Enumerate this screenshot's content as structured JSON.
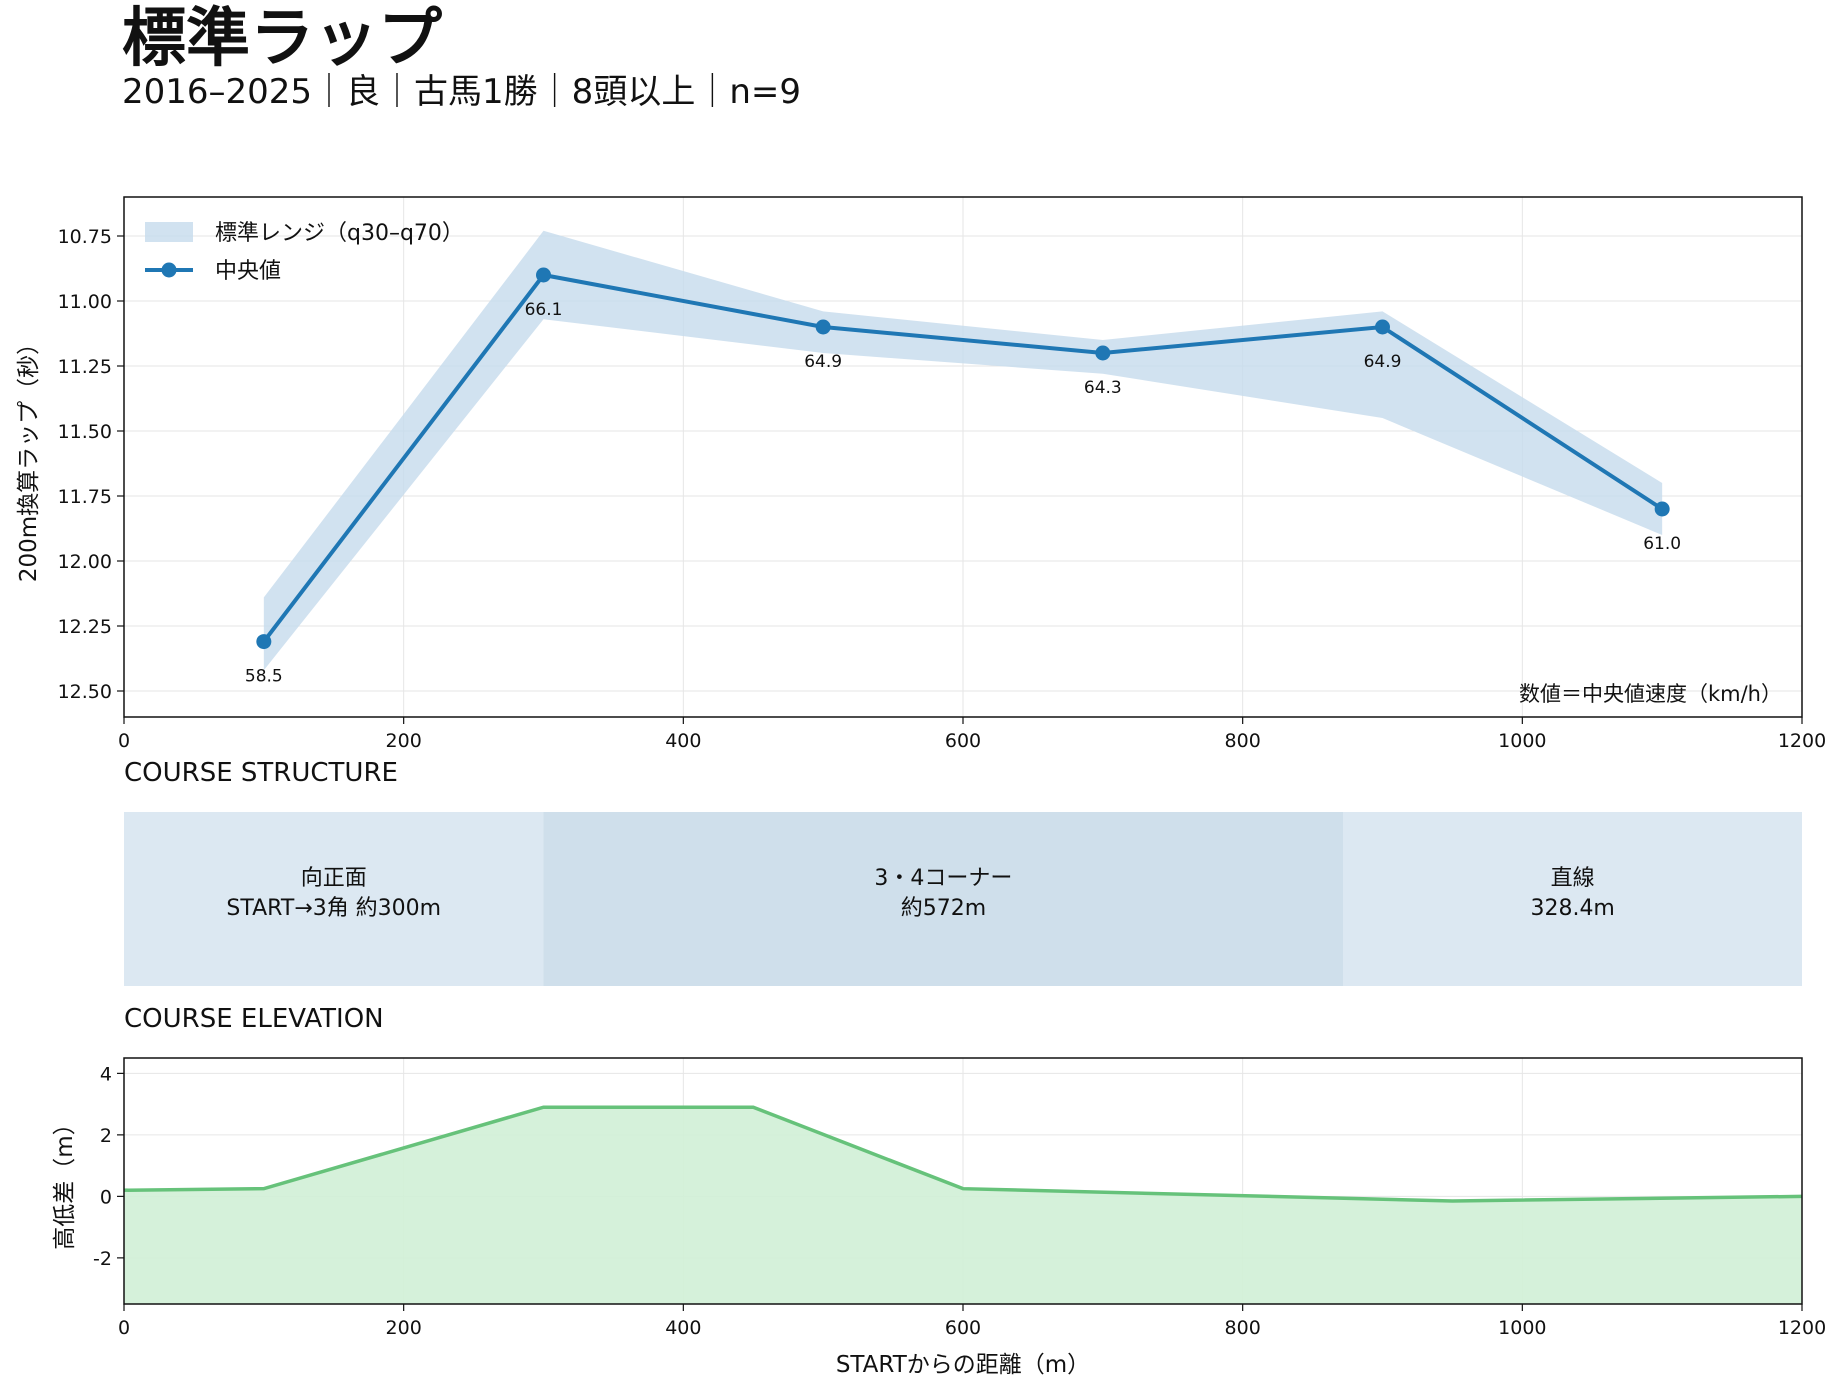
{
  "header": {
    "title": "標準ラップ",
    "subtitle": "2016–2025｜良｜古馬1勝｜8頭以上｜n=9"
  },
  "sections": {
    "structure": "COURSE STRUCTURE",
    "elevation": "COURSE ELEVATION"
  },
  "chart_data": [
    {
      "type": "line",
      "x": [
        100,
        300,
        500,
        700,
        900,
        1100
      ],
      "series": [
        {
          "name": "中央値",
          "values": [
            12.31,
            10.9,
            11.1,
            11.2,
            11.1,
            11.8
          ],
          "color": "#1f77b4",
          "labels": [
            "58.5",
            "66.1",
            "64.9",
            "64.3",
            "64.9",
            "61.0"
          ]
        }
      ],
      "band": {
        "name": "標準レンジ（q30–q70）",
        "x": [
          100,
          300,
          500,
          700,
          900,
          1100
        ],
        "low": [
          12.14,
          10.73,
          11.04,
          11.15,
          11.04,
          11.7
        ],
        "high": [
          12.42,
          11.07,
          11.2,
          11.28,
          11.45,
          11.9
        ],
        "color": "#c6dbec"
      },
      "ylabel": "200m換算ラップ（秒）",
      "xlim": [
        0,
        1200
      ],
      "ylim": [
        12.6,
        10.6
      ],
      "y_inverted": true,
      "xticks": [
        0,
        200,
        400,
        600,
        800,
        1000,
        1200
      ],
      "yticks": [
        10.75,
        11.0,
        11.25,
        11.5,
        11.75,
        12.0,
        12.25,
        12.5
      ],
      "ytick_labels": [
        "10.75",
        "11.00",
        "11.25",
        "11.50",
        "11.75",
        "12.00",
        "12.25",
        "12.50"
      ],
      "annotation": "数値＝中央値速度（km/h）",
      "legend": "top-left",
      "grid": true
    },
    {
      "type": "bar",
      "segments": [
        {
          "start": 0,
          "end": 300,
          "label1": "向正面",
          "label2": "START→3角 約300m",
          "color": "#dce8f2"
        },
        {
          "start": 300,
          "end": 872,
          "label1": "3・4コーナー",
          "label2": "約572m",
          "color": "#cfdfeb"
        },
        {
          "start": 872,
          "end": 1200,
          "label1": "直線",
          "label2": "328.4m",
          "color": "#dce8f2"
        }
      ],
      "xlim": [
        0,
        1200
      ]
    },
    {
      "type": "area",
      "x": [
        0,
        100,
        300,
        450,
        600,
        950,
        1200
      ],
      "values": [
        0.2,
        0.25,
        2.9,
        2.9,
        0.25,
        -0.15,
        0.0
      ],
      "color": "#66c27a",
      "fill": "#d0efd6",
      "xlabel": "STARTからの距離（m）",
      "ylabel": "高低差（m）",
      "xlim": [
        0,
        1200
      ],
      "ylim": [
        -3.5,
        4.5
      ],
      "xticks": [
        0,
        200,
        400,
        600,
        800,
        1000,
        1200
      ],
      "yticks": [
        4,
        2,
        0,
        -2
      ],
      "grid": true
    }
  ]
}
